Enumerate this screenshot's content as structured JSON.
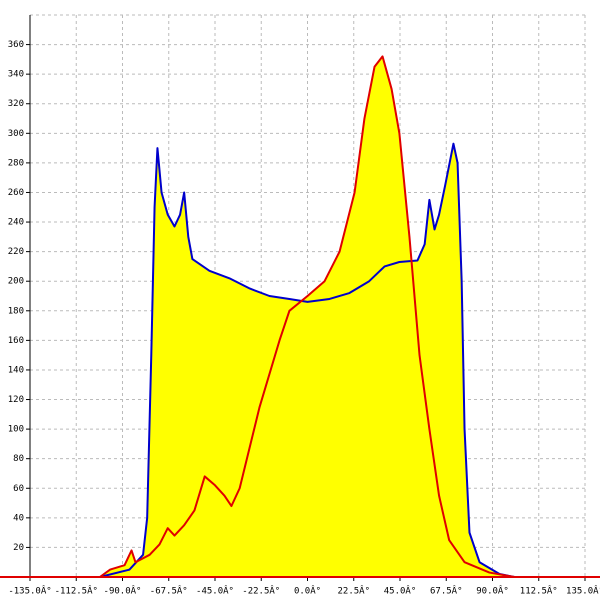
{
  "chart_data": {
    "type": "line",
    "fill": "#ffff00",
    "grid": true,
    "axis_color": "#e00000",
    "xlim": [
      -135,
      135
    ],
    "ylim": [
      0,
      380
    ],
    "xticks": [
      {
        "value": -135,
        "label": "-135.0Â°"
      },
      {
        "value": -112.5,
        "label": "-112.5Â°"
      },
      {
        "value": -90,
        "label": "-90.0Â°"
      },
      {
        "value": -67.5,
        "label": "-67.5Â°"
      },
      {
        "value": -45,
        "label": "-45.0Â°"
      },
      {
        "value": -22.5,
        "label": "-22.5Â°"
      },
      {
        "value": 0,
        "label": "0.0Â°"
      },
      {
        "value": 22.5,
        "label": "22.5Â°"
      },
      {
        "value": 45,
        "label": "45.0Â°"
      },
      {
        "value": 67.5,
        "label": "67.5Â°"
      },
      {
        "value": 90,
        "label": "90.0Â°"
      },
      {
        "value": 112.5,
        "label": "112.5Â°"
      },
      {
        "value": 135,
        "label": "135.0Â°"
      }
    ],
    "yticks": [
      20,
      40,
      60,
      80,
      100,
      120,
      140,
      160,
      180,
      200,
      220,
      240,
      260,
      280,
      300,
      320,
      340,
      360
    ],
    "series": [
      {
        "color": "#0000cc",
        "x": [
          -101,
          -86.6,
          -80,
          -78,
          -76,
          -74.4,
          -73,
          -71,
          -68,
          -64.7,
          -62,
          -60,
          -58,
          -56,
          -47.7,
          -38,
          -28,
          -18.5,
          -8.8,
          0,
          10.7,
          20.4,
          30,
          37.5,
          44.7,
          53.5,
          57,
          59.3,
          61.8,
          64,
          67,
          71,
          73,
          75,
          76.4,
          78.8,
          83.7,
          93.4,
          100.7
        ],
        "values": [
          0,
          5,
          15,
          40,
          150,
          250,
          290,
          260,
          245,
          237,
          245,
          260,
          230,
          215,
          207,
          202,
          195,
          190,
          188,
          186,
          188,
          192,
          200,
          210,
          213,
          214,
          225,
          255,
          235,
          245,
          265,
          293,
          280,
          200,
          100,
          30,
          10,
          2,
          0
        ]
      },
      {
        "color": "#e00000",
        "x": [
          -101,
          -96,
          -89,
          -85.6,
          -83.7,
          -76.8,
          -72,
          -68,
          -64.7,
          -60,
          -55,
          -50,
          -45,
          -40.4,
          -37,
          -33,
          -23.3,
          -13.6,
          -8.8,
          0,
          8.3,
          15.6,
          22.9,
          27.7,
          32.6,
          36.5,
          40.9,
          44.7,
          49.6,
          54.5,
          59.3,
          64,
          68.9,
          76.4,
          88.5,
          100.7
        ],
        "values": [
          0,
          5,
          8,
          18,
          10,
          15,
          22,
          33,
          28,
          35,
          45,
          68,
          62,
          55,
          48,
          60,
          115,
          160,
          180,
          190,
          200,
          220,
          260,
          310,
          345,
          352,
          330,
          300,
          230,
          150,
          100,
          55,
          25,
          10,
          3,
          0
        ]
      }
    ]
  }
}
